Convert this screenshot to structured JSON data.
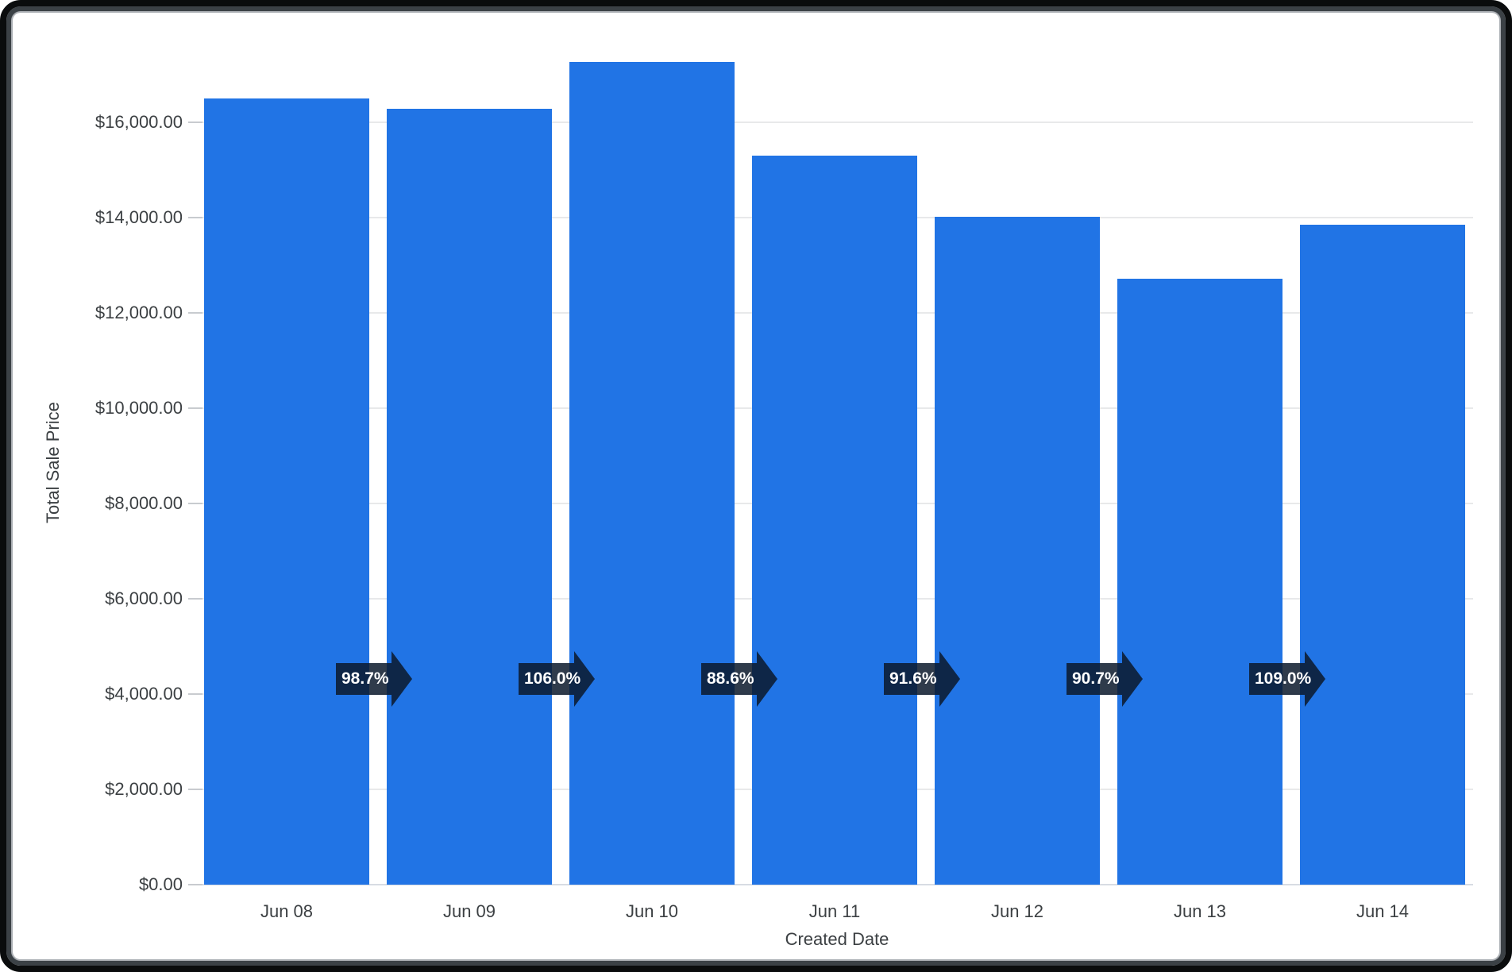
{
  "chart_data": {
    "type": "bar",
    "xlabel": "Created Date",
    "ylabel": "Total Sale Price",
    "categories": [
      "Jun 08",
      "Jun 09",
      "Jun 10",
      "Jun 11",
      "Jun 12",
      "Jun 13",
      "Jun 14"
    ],
    "values": [
      16500,
      16290,
      17270,
      15300,
      14015,
      12710,
      13855
    ],
    "y_ticks": [
      "$0.00",
      "$2,000.00",
      "$4,000.00",
      "$6,000.00",
      "$8,000.00",
      "$10,000.00",
      "$12,000.00",
      "$14,000.00",
      "$16,000.00"
    ],
    "y_tick_step": 2000,
    "ylim": [
      0,
      17530
    ],
    "grid": "horizontal",
    "legend": "none",
    "bar_color": "#2174e5",
    "growth_arrows": {
      "color": "rgba(10,25,43,0.85)",
      "labels": [
        "98.7%",
        "106.0%",
        "88.6%",
        "91.6%",
        "90.7%",
        "109.0%"
      ]
    }
  }
}
